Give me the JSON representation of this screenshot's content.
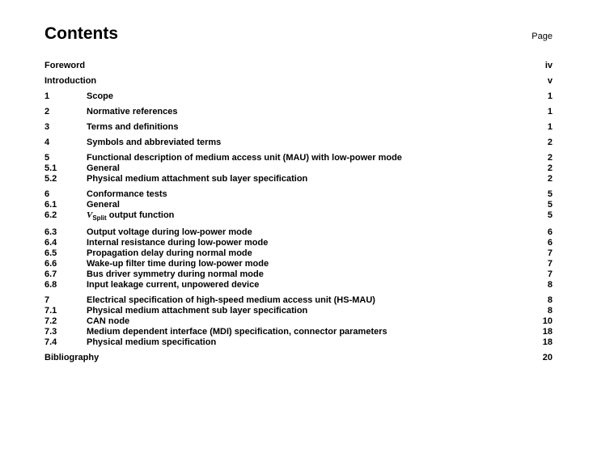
{
  "header": {
    "title": "Contents",
    "page_label": "Page"
  },
  "toc": [
    {
      "group": [
        {
          "num": "",
          "title": "Foreword",
          "page": "iv"
        }
      ]
    },
    {
      "group": [
        {
          "num": "",
          "title": "Introduction",
          "page": "v"
        }
      ]
    },
    {
      "group": [
        {
          "num": "1",
          "title": "Scope",
          "page": "1"
        }
      ]
    },
    {
      "group": [
        {
          "num": "2",
          "title": "Normative references",
          "page": "1"
        }
      ]
    },
    {
      "group": [
        {
          "num": "3",
          "title": "Terms and definitions",
          "page": "1"
        }
      ]
    },
    {
      "group": [
        {
          "num": "4",
          "title": "Symbols and abbreviated terms",
          "page": "2"
        }
      ]
    },
    {
      "group": [
        {
          "num": "5",
          "title": "Functional description of medium access unit (MAU) with low-power mode",
          "page": "2"
        },
        {
          "num": "5.1",
          "title": "General",
          "page": "2"
        },
        {
          "num": "5.2",
          "title": "Physical medium attachment sub layer specification",
          "page": "2"
        }
      ]
    },
    {
      "group": [
        {
          "num": "6",
          "title": "Conformance tests",
          "page": "5"
        },
        {
          "num": "6.1",
          "title": "General",
          "page": "5"
        },
        {
          "num": "6.2",
          "title_html": "<span class=\"italic-v\">V</span><span class=\"sub\">Split</span> output function",
          "page": "5"
        }
      ]
    },
    {
      "group": [
        {
          "num": "6.3",
          "title": "Output voltage during low-power mode",
          "page": "6"
        },
        {
          "num": "6.4",
          "title": "Internal resistance during low-power mode",
          "page": "6"
        },
        {
          "num": "6.5",
          "title": "Propagation delay during normal mode",
          "page": "7"
        },
        {
          "num": "6.6",
          "title": "Wake-up filter time during low-power mode",
          "page": "7"
        },
        {
          "num": "6.7",
          "title": "Bus driver symmetry during normal mode",
          "page": "7"
        },
        {
          "num": "6.8",
          "title": "Input leakage current, unpowered device",
          "page": "8"
        }
      ]
    },
    {
      "group": [
        {
          "num": "7",
          "title": "Electrical specification of high-speed medium access unit (HS-MAU)",
          "page": "8"
        },
        {
          "num": "7.1",
          "title": "Physical medium attachment sub layer specification",
          "page": "8"
        },
        {
          "num": "7.2",
          "title": "CAN node",
          "page": "10"
        },
        {
          "num": "7.3",
          "title": "Medium dependent interface (MDI) specification, connector parameters",
          "page": "18"
        },
        {
          "num": "7.4",
          "title": "Physical medium specification",
          "page": "18"
        }
      ]
    },
    {
      "group": [
        {
          "num": "",
          "title": "Bibliography",
          "page": "20"
        }
      ]
    }
  ]
}
